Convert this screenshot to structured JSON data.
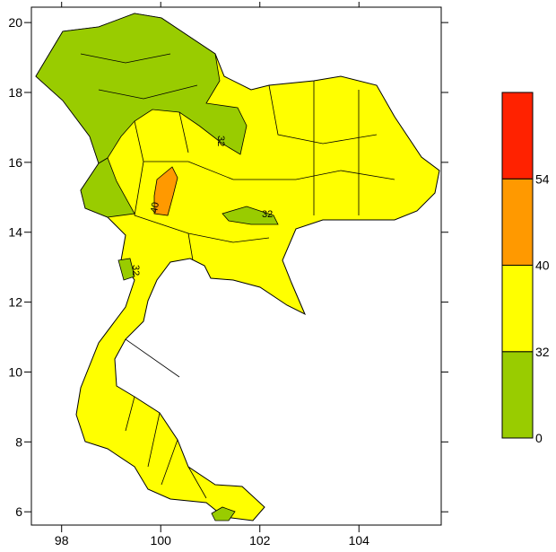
{
  "map": {
    "xlim": [
      97.39,
      105.66
    ],
    "ylim": [
      5.62,
      20.44
    ],
    "xticks": [
      98,
      100,
      102,
      104
    ],
    "yticks": [
      6,
      8,
      10,
      12,
      14,
      16,
      18,
      20
    ],
    "contour_labels": [
      "32",
      "40",
      "32",
      "32"
    ],
    "colorbar": {
      "levels": [
        0,
        32,
        40,
        54
      ],
      "colors": [
        "#99cc00",
        "#ffff00",
        "#ff9900",
        "#ff2200"
      ]
    }
  }
}
